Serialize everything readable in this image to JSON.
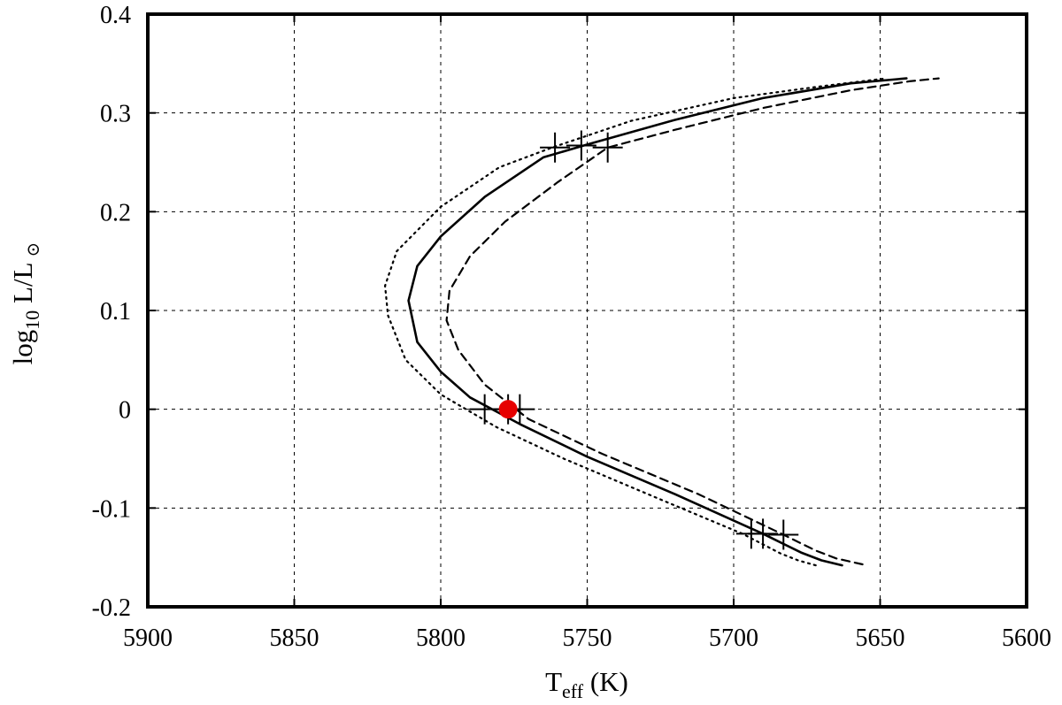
{
  "chart_data": {
    "type": "line",
    "xlabel": {
      "main": "T",
      "sub": "eff",
      "rest": " (K)"
    },
    "ylabel": {
      "pre": "log",
      "sub": "10",
      "rest": " L/L",
      "sym": "⊙"
    },
    "xlim": [
      5900,
      5600
    ],
    "ylim": [
      -0.2,
      0.4
    ],
    "x_reversed": true,
    "grid": true,
    "legend": "none",
    "xticks": [
      5900,
      5850,
      5800,
      5750,
      5700,
      5650,
      5600
    ],
    "yticks": [
      -0.2,
      -0.1,
      0,
      0.1,
      0.2,
      0.3,
      0.4
    ],
    "xtick_labels": [
      "5900",
      "5850",
      "5800",
      "5750",
      "5700",
      "5650",
      "5600"
    ],
    "ytick_labels": [
      "-0.2",
      "-0.1",
      "0",
      "0.1",
      "0.2",
      "0.3",
      "0.4"
    ],
    "series": [
      {
        "style": "solid",
        "points": [
          [
            5663,
            -0.158
          ],
          [
            5670,
            -0.153
          ],
          [
            5677,
            -0.145
          ],
          [
            5690,
            -0.126
          ],
          [
            5720,
            -0.086
          ],
          [
            5750,
            -0.048
          ],
          [
            5773,
            -0.015
          ],
          [
            5790,
            0.012
          ],
          [
            5800,
            0.038
          ],
          [
            5808,
            0.068
          ],
          [
            5811,
            0.11
          ],
          [
            5808,
            0.145
          ],
          [
            5800,
            0.175
          ],
          [
            5785,
            0.215
          ],
          [
            5765,
            0.255
          ],
          [
            5750,
            0.268
          ],
          [
            5720,
            0.293
          ],
          [
            5690,
            0.315
          ],
          [
            5660,
            0.33
          ],
          [
            5641,
            0.335
          ]
        ],
        "markers": [
          [
            5785,
            0.0
          ],
          [
            5690,
            -0.126
          ],
          [
            5752,
            0.267
          ]
        ]
      },
      {
        "style": "dashed",
        "points": [
          [
            5656,
            -0.157
          ],
          [
            5665,
            -0.151
          ],
          [
            5672,
            -0.143
          ],
          [
            5683,
            -0.127
          ],
          [
            5712,
            -0.086
          ],
          [
            5745,
            -0.045
          ],
          [
            5770,
            -0.01
          ],
          [
            5785,
            0.025
          ],
          [
            5794,
            0.06
          ],
          [
            5798,
            0.09
          ],
          [
            5797,
            0.12
          ],
          [
            5790,
            0.155
          ],
          [
            5778,
            0.19
          ],
          [
            5760,
            0.23
          ],
          [
            5743,
            0.265
          ],
          [
            5720,
            0.283
          ],
          [
            5690,
            0.305
          ],
          [
            5660,
            0.323
          ],
          [
            5640,
            0.332
          ],
          [
            5630,
            0.335
          ]
        ],
        "markers": [
          [
            5773,
            0.0
          ],
          [
            5683,
            -0.127
          ],
          [
            5743,
            0.265
          ]
        ]
      },
      {
        "style": "dotted",
        "points": [
          [
            5672,
            -0.158
          ],
          [
            5678,
            -0.153
          ],
          [
            5684,
            -0.146
          ],
          [
            5697,
            -0.126
          ],
          [
            5726,
            -0.09
          ],
          [
            5758,
            -0.05
          ],
          [
            5781,
            -0.018
          ],
          [
            5800,
            0.015
          ],
          [
            5812,
            0.05
          ],
          [
            5818,
            0.095
          ],
          [
            5819,
            0.125
          ],
          [
            5815,
            0.16
          ],
          [
            5800,
            0.205
          ],
          [
            5780,
            0.245
          ],
          [
            5762,
            0.265
          ],
          [
            5735,
            0.292
          ],
          [
            5700,
            0.315
          ],
          [
            5670,
            0.327
          ],
          [
            5648,
            0.335
          ]
        ],
        "markers": [
          [
            5777,
            0.0
          ],
          [
            5694,
            -0.126
          ],
          [
            5761,
            0.265
          ]
        ]
      }
    ],
    "highlight_point": {
      "x": 5777,
      "y": 0.0,
      "color": "#e60000"
    }
  }
}
